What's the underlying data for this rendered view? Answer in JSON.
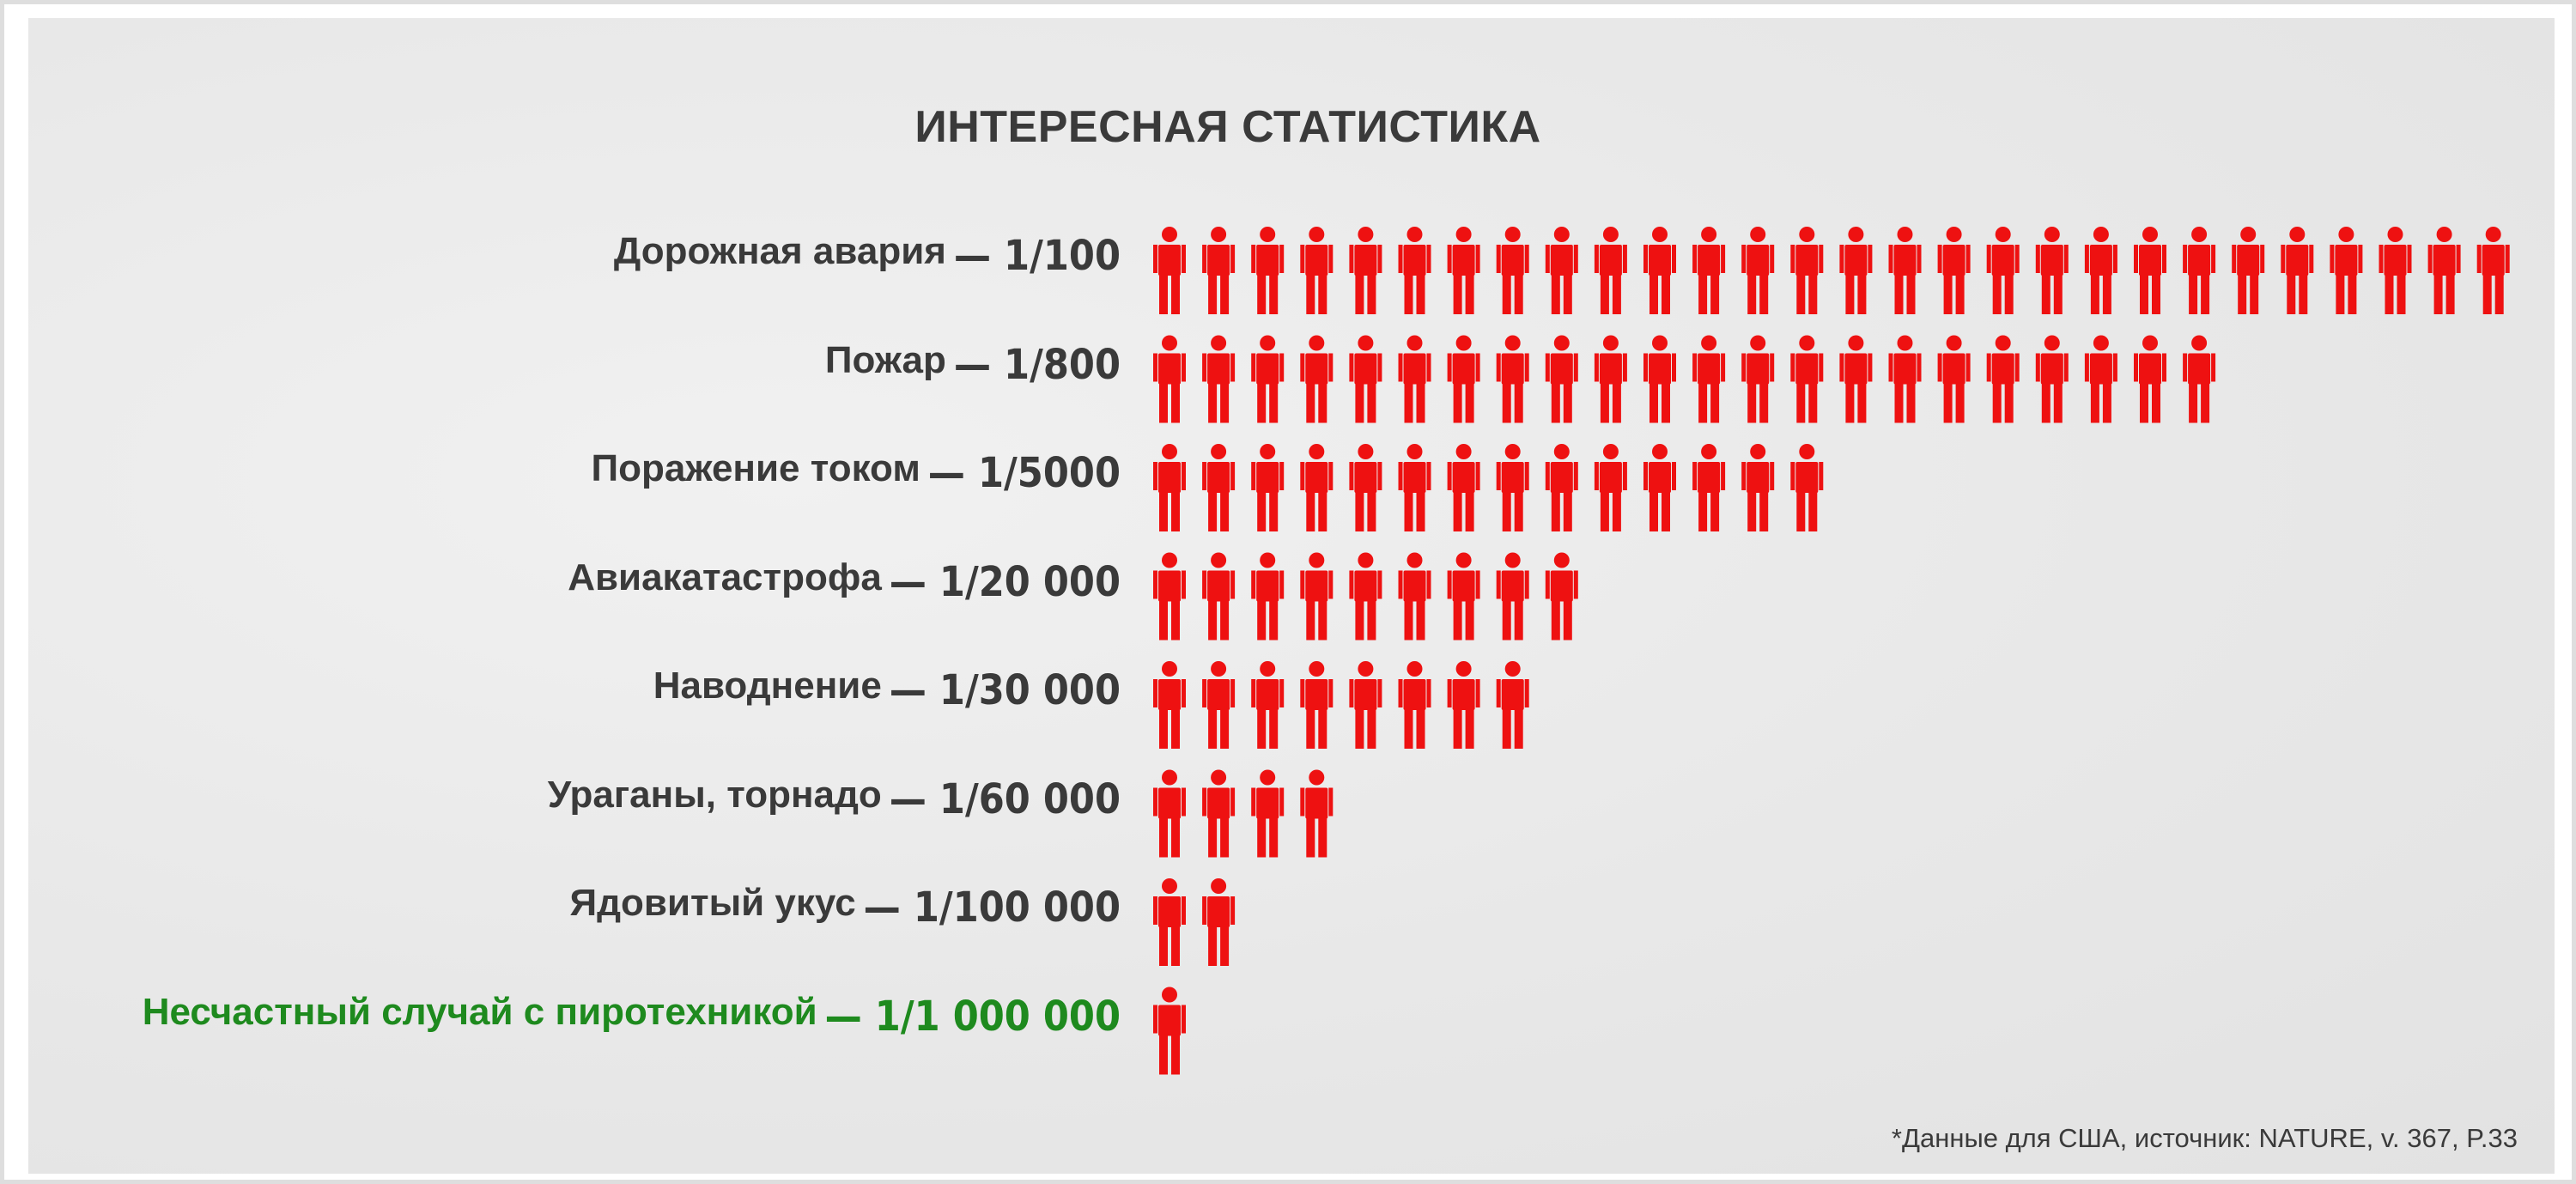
{
  "title": "ИНТЕРЕСНАЯ СТАТИСТИКА",
  "footnote": "*Данные для США, источник: NATURE, v. 367, P.33",
  "colors": {
    "icon": "#ee1111",
    "text": "#3a3a3a",
    "highlight": "#1e8a1e",
    "background": "#e9e9e9"
  },
  "chart_data": {
    "type": "bar",
    "mark": "person-pictogram",
    "categories": [
      "Дорожная авария",
      "Пожар",
      "Поражение током",
      "Авиакатастрофа",
      "Наводнение",
      "Ураганы, торнадо",
      "Ядовитый укус",
      "Несчастный случай с пиротехникой"
    ],
    "ratios": [
      "— 1/100",
      "— 1/800",
      "— 1/5000",
      "— 1/20 000",
      "— 1/30 000",
      "— 1/60 000",
      "— 1/100 000",
      "— 1/1 000 000"
    ],
    "values": [
      28,
      22,
      14,
      9,
      8,
      4,
      2,
      1
    ],
    "highlighted_index": 7
  }
}
